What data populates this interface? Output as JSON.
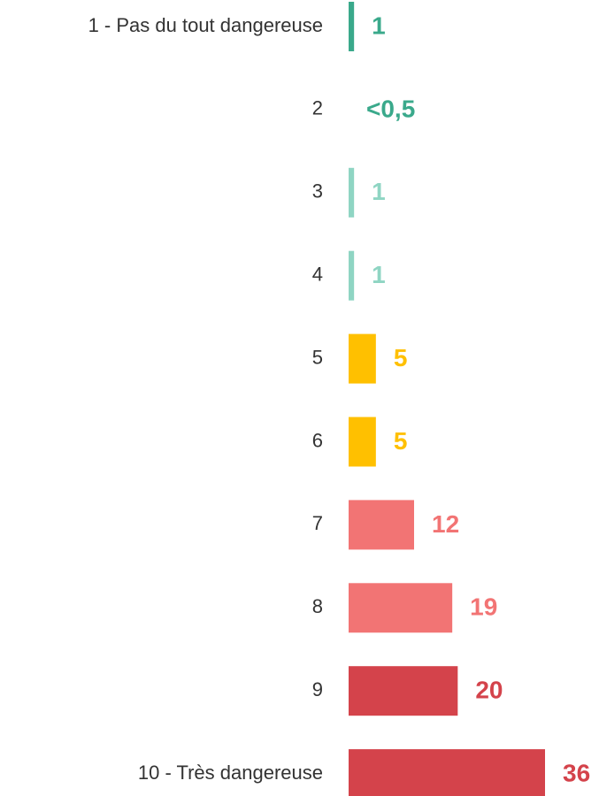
{
  "chart_data": {
    "type": "hbar",
    "categories": [
      "1 - Pas du tout dangereuse",
      "2",
      "3",
      "4",
      "5",
      "6",
      "7",
      "8",
      "9",
      "10 - Très dangereuse"
    ],
    "values": [
      1,
      0,
      1,
      1,
      5,
      5,
      12,
      19,
      20,
      36
    ],
    "value_labels": [
      "1",
      "<0,5",
      "1",
      "1",
      "5",
      "5",
      "12",
      "19",
      "20",
      "36"
    ],
    "colors": [
      "#3aa98b",
      "#3aa98b",
      "#8fd5c3",
      "#8fd5c3",
      "#ffc000",
      "#ffc000",
      "#f27474",
      "#f27474",
      "#d4434b",
      "#d4434b"
    ]
  }
}
